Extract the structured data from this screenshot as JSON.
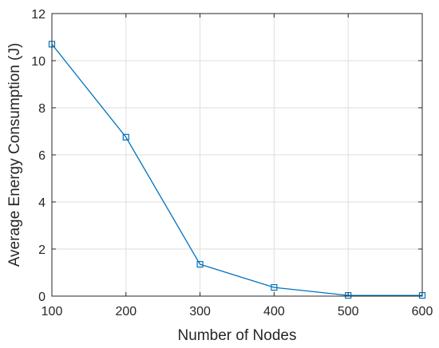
{
  "chart_data": {
    "type": "line",
    "title": "",
    "xlabel": "Number of Nodes",
    "ylabel": "Average Energy Consumption (J)",
    "xlim": [
      100,
      600
    ],
    "ylim": [
      0,
      12
    ],
    "xticks": [
      100,
      200,
      300,
      400,
      500,
      600
    ],
    "yticks": [
      0,
      2,
      4,
      6,
      8,
      10,
      12
    ],
    "grid": true,
    "series": [
      {
        "marker": "square",
        "color": "#0072BD",
        "x": [
          100,
          200,
          300,
          400,
          500,
          600
        ],
        "y": [
          10.7,
          6.75,
          1.35,
          0.37,
          0.03,
          0.03
        ]
      }
    ]
  }
}
